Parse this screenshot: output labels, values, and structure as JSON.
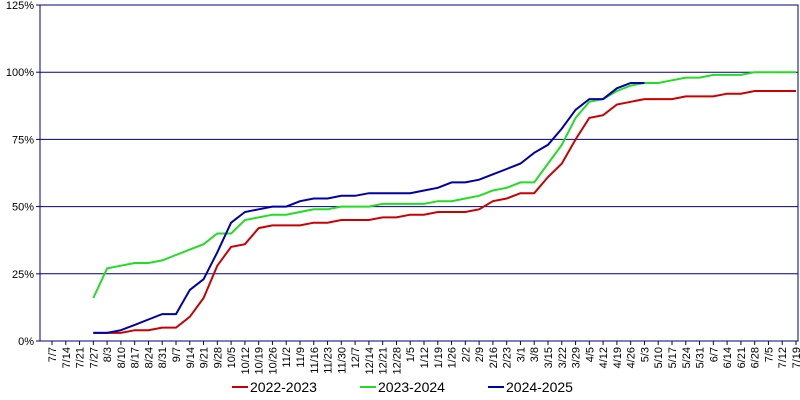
{
  "chart_data": {
    "type": "line",
    "categories": [
      "7/7",
      "7/14",
      "7/21",
      "7/27",
      "8/3",
      "8/10",
      "8/17",
      "8/24",
      "8/31",
      "9/7",
      "9/14",
      "9/21",
      "9/28",
      "10/5",
      "10/12",
      "10/19",
      "10/26",
      "11/2",
      "11/9",
      "11/16",
      "11/23",
      "11/30",
      "12/7",
      "12/14",
      "12/21",
      "12/28",
      "1/5",
      "1/12",
      "1/19",
      "1/26",
      "2/2",
      "2/9",
      "2/16",
      "2/23",
      "3/1",
      "3/8",
      "3/15",
      "3/22",
      "3/29",
      "4/5",
      "4/12",
      "4/19",
      "4/26",
      "5/3",
      "5/10",
      "5/17",
      "5/24",
      "5/31",
      "6/7",
      "6/14",
      "6/21",
      "6/28",
      "7/5",
      "7/12",
      "7/19"
    ],
    "series": [
      {
        "name": "2022-2023",
        "color": "#cc0000",
        "values": [
          null,
          null,
          null,
          3,
          3,
          3,
          4,
          4,
          5,
          5,
          9,
          16,
          28,
          35,
          36,
          42,
          43,
          43,
          43,
          44,
          44,
          45,
          45,
          45,
          46,
          46,
          47,
          47,
          48,
          48,
          48,
          49,
          52,
          53,
          55,
          55,
          61,
          66,
          75,
          83,
          84,
          88,
          89,
          90,
          90,
          90,
          91,
          91,
          91,
          92,
          92,
          93,
          93,
          93,
          93
        ]
      },
      {
        "name": "2023-2024",
        "color": "#22dd22",
        "values": [
          null,
          null,
          null,
          16,
          27,
          28,
          29,
          29,
          30,
          32,
          34,
          36,
          40,
          40,
          45,
          46,
          47,
          47,
          48,
          49,
          49,
          50,
          50,
          50,
          51,
          51,
          51,
          51,
          52,
          52,
          53,
          54,
          56,
          57,
          59,
          59,
          66,
          73,
          83,
          89,
          90,
          93,
          95,
          96,
          96,
          97,
          98,
          98,
          99,
          99,
          99,
          100,
          100,
          100,
          100
        ]
      },
      {
        "name": "2024-2025",
        "color": "#0000aa",
        "values": [
          null,
          null,
          null,
          3,
          3,
          4,
          6,
          8,
          10,
          10,
          19,
          23,
          33,
          44,
          48,
          49,
          50,
          50,
          52,
          53,
          53,
          54,
          54,
          55,
          55,
          55,
          55,
          56,
          57,
          59,
          59,
          60,
          62,
          64,
          66,
          70,
          73,
          79,
          86,
          90,
          90,
          94,
          96,
          96,
          null,
          null,
          null,
          null,
          null,
          null,
          null,
          null,
          null,
          null,
          null
        ]
      }
    ],
    "ylim": [
      0,
      125
    ],
    "yticks": [
      {
        "value": 0,
        "label": "0%"
      },
      {
        "value": 25,
        "label": "25%"
      },
      {
        "value": 50,
        "label": "50%"
      },
      {
        "value": 75,
        "label": "75%"
      },
      {
        "value": 100,
        "label": "100%"
      },
      {
        "value": 125,
        "label": "125%"
      }
    ],
    "grid": true,
    "legend": "bottom"
  }
}
